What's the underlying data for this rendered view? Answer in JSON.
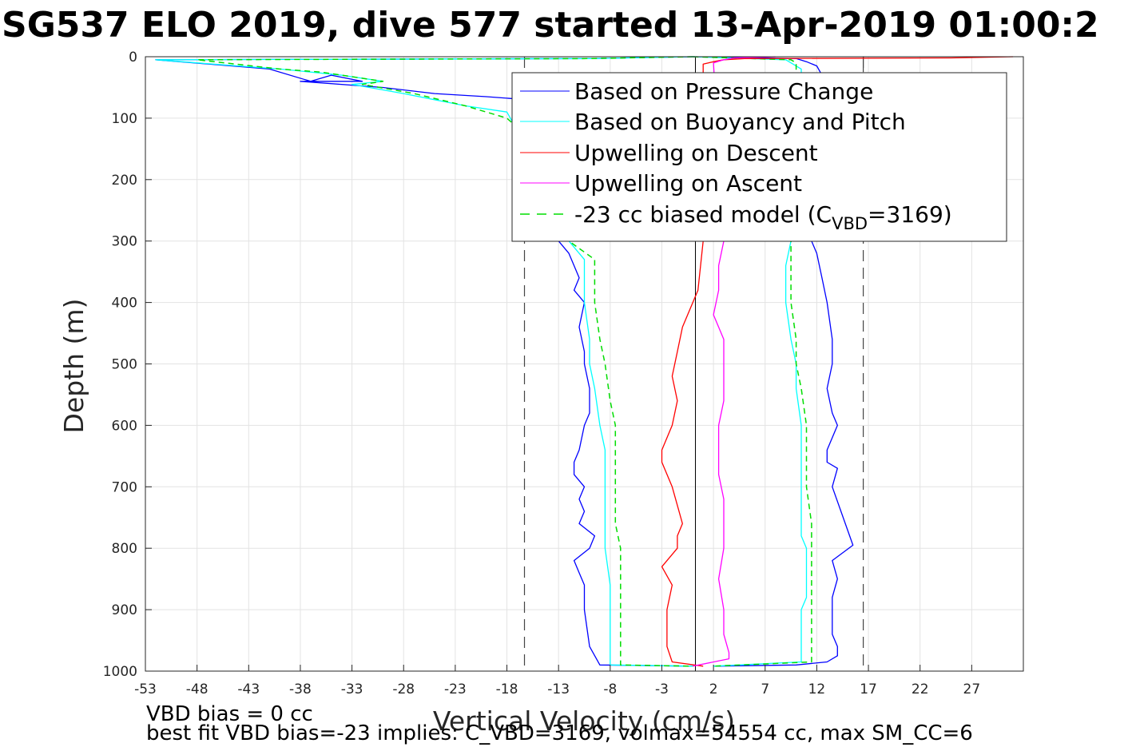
{
  "chart_data": {
    "type": "line",
    "title": "SG537 ELO 2019, dive 577 started 13-Apr-2019 01:00:2",
    "xlabel": "Vertical Velocity (cm/s)",
    "ylabel": "Depth (m)",
    "xlim": [
      -53,
      32
    ],
    "ylim": [
      0,
      1000
    ],
    "y_reversed": true,
    "grid": true,
    "legend_position": "top-right",
    "xticks": [
      -53,
      -48,
      -43,
      -38,
      -33,
      -28,
      -23,
      -18,
      -13,
      -8,
      -3,
      2,
      7,
      12,
      17,
      22,
      27
    ],
    "yticks": [
      0,
      100,
      200,
      300,
      400,
      500,
      600,
      700,
      800,
      900,
      1000
    ],
    "reference_lines": {
      "solid_x": [
        0.25,
        -16.3
      ],
      "dashed_x": [
        -16.3,
        16.5
      ],
      "solid_x_top_segment": [
        16.5
      ]
    },
    "legend": {
      "entries": [
        {
          "label": "Based on Pressure Change",
          "color": "#0000ff",
          "dash": false
        },
        {
          "label": "Based on Buoyancy and Pitch",
          "color": "#00ffff",
          "dash": false
        },
        {
          "label": "Upwelling on Descent",
          "color": "#ff0000",
          "dash": false
        },
        {
          "label": "Upwelling on Ascent",
          "color": "#ff00ff",
          "dash": false
        },
        {
          "label_pre": "-23 cc biased model (C",
          "label_sub": "VBD",
          "label_post": "=3169)",
          "color": "#00dd00",
          "dash": true
        }
      ]
    },
    "series": [
      {
        "name": "Based on Pressure Change",
        "color": "#0000ff",
        "segments": [
          {
            "x": [
              0,
              -10,
              -52,
              -41,
              -37,
              -35,
              -32,
              -38,
              -30,
              -25,
              -20,
              -16,
              -13,
              -12,
              -13,
              -12,
              -11.5,
              -11,
              -11.5,
              -10.5,
              -11,
              -10.5,
              -10.5,
              -10,
              -10,
              -10.5,
              -11,
              -11.5,
              -11.5,
              -10.5,
              -11,
              -10.5,
              -11,
              -9.5,
              -10,
              -11.5,
              -11,
              -10.5,
              -10.5,
              -10.5,
              -10,
              -9,
              0
            ],
            "y": [
              0,
              3,
              5,
              20,
              40,
              30,
              40,
              40,
              50,
              60,
              65,
              70,
              100,
              200,
              300,
              320,
              340,
              360,
              380,
              400,
              440,
              480,
              500,
              540,
              580,
              600,
              640,
              660,
              680,
              700,
              720,
              740,
              760,
              780,
              800,
              820,
              840,
              860,
              880,
              900,
              960,
              990,
              992
            ]
          },
          {
            "x": [
              0,
              10,
              11,
              12,
              12.5,
              11.5,
              12,
              12.5,
              13,
              13.5,
              13.5,
              13,
              13.5,
              14,
              13,
              13,
              14,
              13.5,
              15.5,
              13.5,
              14,
              13.5,
              13.5,
              13.5,
              14,
              14,
              13,
              10,
              2
            ],
            "y": [
              0,
              3,
              8,
              15,
              30,
              300,
              320,
              360,
              400,
              460,
              500,
              540,
              580,
              600,
              640,
              660,
              670,
              700,
              795,
              820,
              850,
              880,
              900,
              940,
              960,
              975,
              985,
              990,
              992
            ]
          }
        ]
      },
      {
        "name": "Based on Buoyancy and Pitch",
        "color": "#00ffff",
        "segments": [
          {
            "x": [
              0,
              -10,
              -52,
              -40,
              -37,
              -34,
              -30,
              -33,
              -28,
              -25,
              -22,
              -18,
              -17,
              -16,
              -14,
              -12,
              -10.5,
              -10.5,
              -10,
              -10,
              -9.5,
              -9,
              -8.5,
              -8.5,
              -8.5,
              -8.5,
              -8,
              -8,
              -8,
              -8,
              0
            ],
            "y": [
              0,
              3,
              5,
              20,
              25,
              30,
              40,
              45,
              60,
              70,
              80,
              90,
              120,
              130,
              200,
              300,
              330,
              400,
              460,
              500,
              540,
              600,
              640,
              700,
              760,
              800,
              860,
              900,
              950,
              990,
              992
            ]
          },
          {
            "x": [
              0,
              9,
              9.5,
              10.5,
              10.5,
              9.5,
              9,
              9,
              9.5,
              10,
              10,
              10.5,
              10.5,
              10.5,
              10.5,
              10.5,
              11,
              11,
              11,
              10.5,
              10.5,
              10.5,
              10.5,
              2
            ],
            "y": [
              0,
              5,
              10,
              20,
              30,
              300,
              340,
              400,
              460,
              500,
              540,
              600,
              640,
              700,
              760,
              780,
              800,
              840,
              880,
              900,
              940,
              970,
              985,
              992
            ]
          }
        ]
      },
      {
        "name": "-23 cc biased model (C_VBD=3169)",
        "color": "#00dd00",
        "dash": true,
        "segments": [
          {
            "x": [
              0,
              -10,
              -48,
              -40,
              -36,
              -34,
              -30,
              -32,
              -27,
              -22,
              -18,
              -16,
              -15,
              -12,
              -9.5,
              -9.5,
              -9,
              -8.5,
              -8,
              -7.5,
              -7.5,
              -7.5,
              -7.5,
              -7,
              -7,
              -7,
              -7,
              0
            ],
            "y": [
              0,
              3,
              5,
              20,
              25,
              30,
              40,
              45,
              60,
              80,
              100,
              130,
              200,
              300,
              330,
              400,
              460,
              500,
              560,
              600,
              640,
              700,
              760,
              800,
              860,
              900,
              990,
              992
            ]
          },
          {
            "x": [
              0,
              9.5,
              10,
              10,
              9.5,
              9.5,
              10,
              10,
              10.5,
              11,
              11,
              11,
              11.5,
              11.5,
              11.5,
              11.5,
              11.5,
              2
            ],
            "y": [
              0,
              5,
              10,
              30,
              300,
              400,
              460,
              500,
              540,
              600,
              640,
              700,
              760,
              800,
              860,
              900,
              985,
              992
            ]
          }
        ]
      },
      {
        "name": "Upwelling on Descent",
        "color": "#ff0000",
        "segments": [
          {
            "x": [
              31,
              25,
              5,
              3,
              2,
              1.5,
              1,
              1,
              0.5,
              -1,
              -1.5,
              -2,
              -1.5,
              -2,
              -3,
              -3,
              -2,
              -1,
              -1.5,
              -1.5,
              -3,
              -2,
              -2.5,
              -2.5,
              -2,
              1
            ],
            "y": [
              0,
              2,
              3,
              5,
              8,
              10,
              12,
              300,
              380,
              440,
              480,
              520,
              560,
              600,
              640,
              660,
              700,
              760,
              780,
              800,
              830,
              860,
              900,
              960,
              985,
              992
            ]
          }
        ]
      },
      {
        "name": "Upwelling on Ascent",
        "color": "#ff00ff",
        "segments": [
          {
            "x": [
              8,
              4,
              3,
              2,
              3,
              2.5,
              2.5,
              2,
              3,
              3,
              3,
              2.5,
              2.5,
              2.5,
              3,
              3,
              3,
              2.5,
              3,
              3,
              3.5,
              3.5,
              0
            ],
            "y": [
              0,
              2,
              5,
              10,
              300,
              340,
              380,
              420,
              460,
              500,
              560,
              600,
              640,
              680,
              720,
              760,
              800,
              850,
              900,
              940,
              970,
              980,
              992
            ]
          }
        ]
      }
    ]
  },
  "notes": {
    "line1": "VBD bias = 0 cc",
    "line2": "best fit VBD bias=-23 implies: C_VBD=3169, volmax=54554 cc, max SM_CC=6"
  }
}
